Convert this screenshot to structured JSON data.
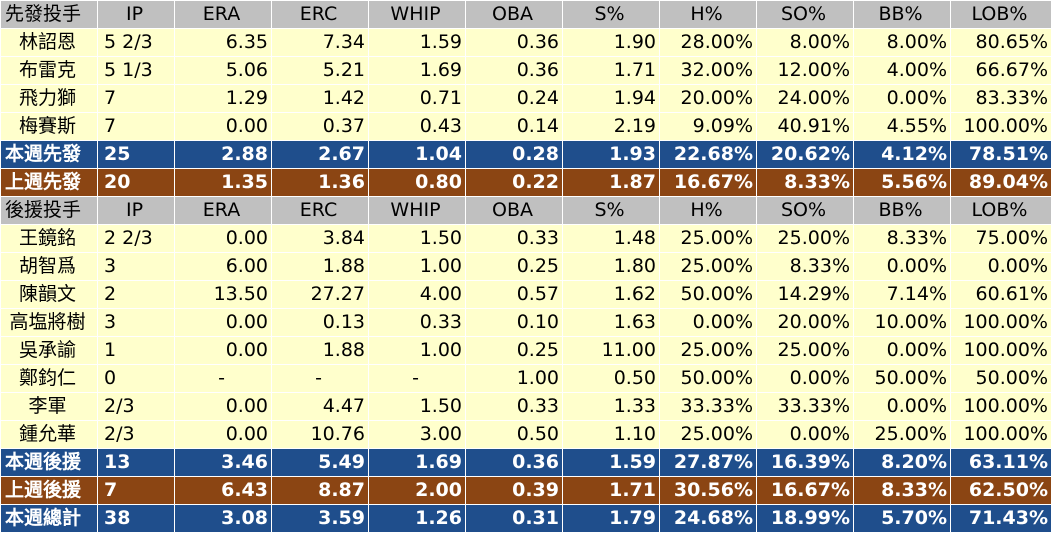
{
  "columns": [
    "IP",
    "ERA",
    "ERC",
    "WHIP",
    "OBA",
    "S%",
    "H%",
    "SO%",
    "BB%",
    "LOB%"
  ],
  "colors": {
    "header": "#c0c0c0",
    "data": "#ffffcc",
    "blue": "#1f4e8c",
    "brown": "#8b4513"
  },
  "sections": [
    {
      "header": "先發投手",
      "rows": [
        {
          "name": "林詔恩",
          "values": [
            "5 2/3",
            "6.35",
            "7.34",
            "1.59",
            "0.36",
            "1.90",
            "28.00%",
            "8.00%",
            "8.00%",
            "80.65%"
          ]
        },
        {
          "name": "布雷克",
          "values": [
            "5 1/3",
            "5.06",
            "5.21",
            "1.69",
            "0.36",
            "1.71",
            "32.00%",
            "12.00%",
            "4.00%",
            "66.67%"
          ]
        },
        {
          "name": "飛力獅",
          "values": [
            "7",
            "1.29",
            "1.42",
            "0.71",
            "0.24",
            "1.94",
            "20.00%",
            "24.00%",
            "0.00%",
            "83.33%"
          ]
        },
        {
          "name": "梅賽斯",
          "values": [
            "7",
            "0.00",
            "0.37",
            "0.43",
            "0.14",
            "2.19",
            "9.09%",
            "40.91%",
            "4.55%",
            "100.00%"
          ]
        }
      ],
      "totals": [
        {
          "style": "blue",
          "name": "本週先發",
          "values": [
            "25",
            "2.88",
            "2.67",
            "1.04",
            "0.28",
            "1.93",
            "22.68%",
            "20.62%",
            "4.12%",
            "78.51%"
          ]
        },
        {
          "style": "brown",
          "name": "上週先發",
          "values": [
            "20",
            "1.35",
            "1.36",
            "0.80",
            "0.22",
            "1.87",
            "16.67%",
            "8.33%",
            "5.56%",
            "89.04%"
          ]
        }
      ]
    },
    {
      "header": "後援投手",
      "rows": [
        {
          "name": "王鏡銘",
          "values": [
            "2 2/3",
            "0.00",
            "3.84",
            "1.50",
            "0.33",
            "1.48",
            "25.00%",
            "25.00%",
            "8.33%",
            "75.00%"
          ]
        },
        {
          "name": "胡智爲",
          "values": [
            "3",
            "6.00",
            "1.88",
            "1.00",
            "0.25",
            "1.80",
            "25.00%",
            "8.33%",
            "0.00%",
            "0.00%"
          ]
        },
        {
          "name": "陳韻文",
          "values": [
            "2",
            "13.50",
            "27.27",
            "4.00",
            "0.57",
            "1.62",
            "50.00%",
            "14.29%",
            "7.14%",
            "60.61%"
          ]
        },
        {
          "name": "高塩將樹",
          "values": [
            "3",
            "0.00",
            "0.13",
            "0.33",
            "0.10",
            "1.63",
            "0.00%",
            "20.00%",
            "10.00%",
            "100.00%"
          ]
        },
        {
          "name": "吳承諭",
          "values": [
            "1",
            "0.00",
            "1.88",
            "1.00",
            "0.25",
            "11.00",
            "25.00%",
            "25.00%",
            "0.00%",
            "100.00%"
          ]
        },
        {
          "name": "鄭鈞仁",
          "values": [
            "0",
            "-",
            "-",
            "-",
            "1.00",
            "0.50",
            "50.00%",
            "0.00%",
            "50.00%",
            "50.00%"
          ]
        },
        {
          "name": "李軍",
          "values": [
            "2/3",
            "0.00",
            "4.47",
            "1.50",
            "0.33",
            "1.33",
            "33.33%",
            "33.33%",
            "0.00%",
            "100.00%"
          ]
        },
        {
          "name": "鍾允華",
          "values": [
            "2/3",
            "0.00",
            "10.76",
            "3.00",
            "0.50",
            "1.10",
            "25.00%",
            "0.00%",
            "25.00%",
            "100.00%"
          ]
        }
      ],
      "totals": [
        {
          "style": "blue",
          "name": "本週後援",
          "values": [
            "13",
            "3.46",
            "5.49",
            "1.69",
            "0.36",
            "1.59",
            "27.87%",
            "16.39%",
            "8.20%",
            "63.11%"
          ]
        },
        {
          "style": "brown",
          "name": "上週後援",
          "values": [
            "7",
            "6.43",
            "8.87",
            "2.00",
            "0.39",
            "1.71",
            "30.56%",
            "16.67%",
            "8.33%",
            "62.50%"
          ]
        },
        {
          "style": "blue",
          "name": "本週總計",
          "values": [
            "38",
            "3.08",
            "3.59",
            "1.26",
            "0.31",
            "1.79",
            "24.68%",
            "18.99%",
            "5.70%",
            "71.43%"
          ]
        }
      ]
    }
  ]
}
